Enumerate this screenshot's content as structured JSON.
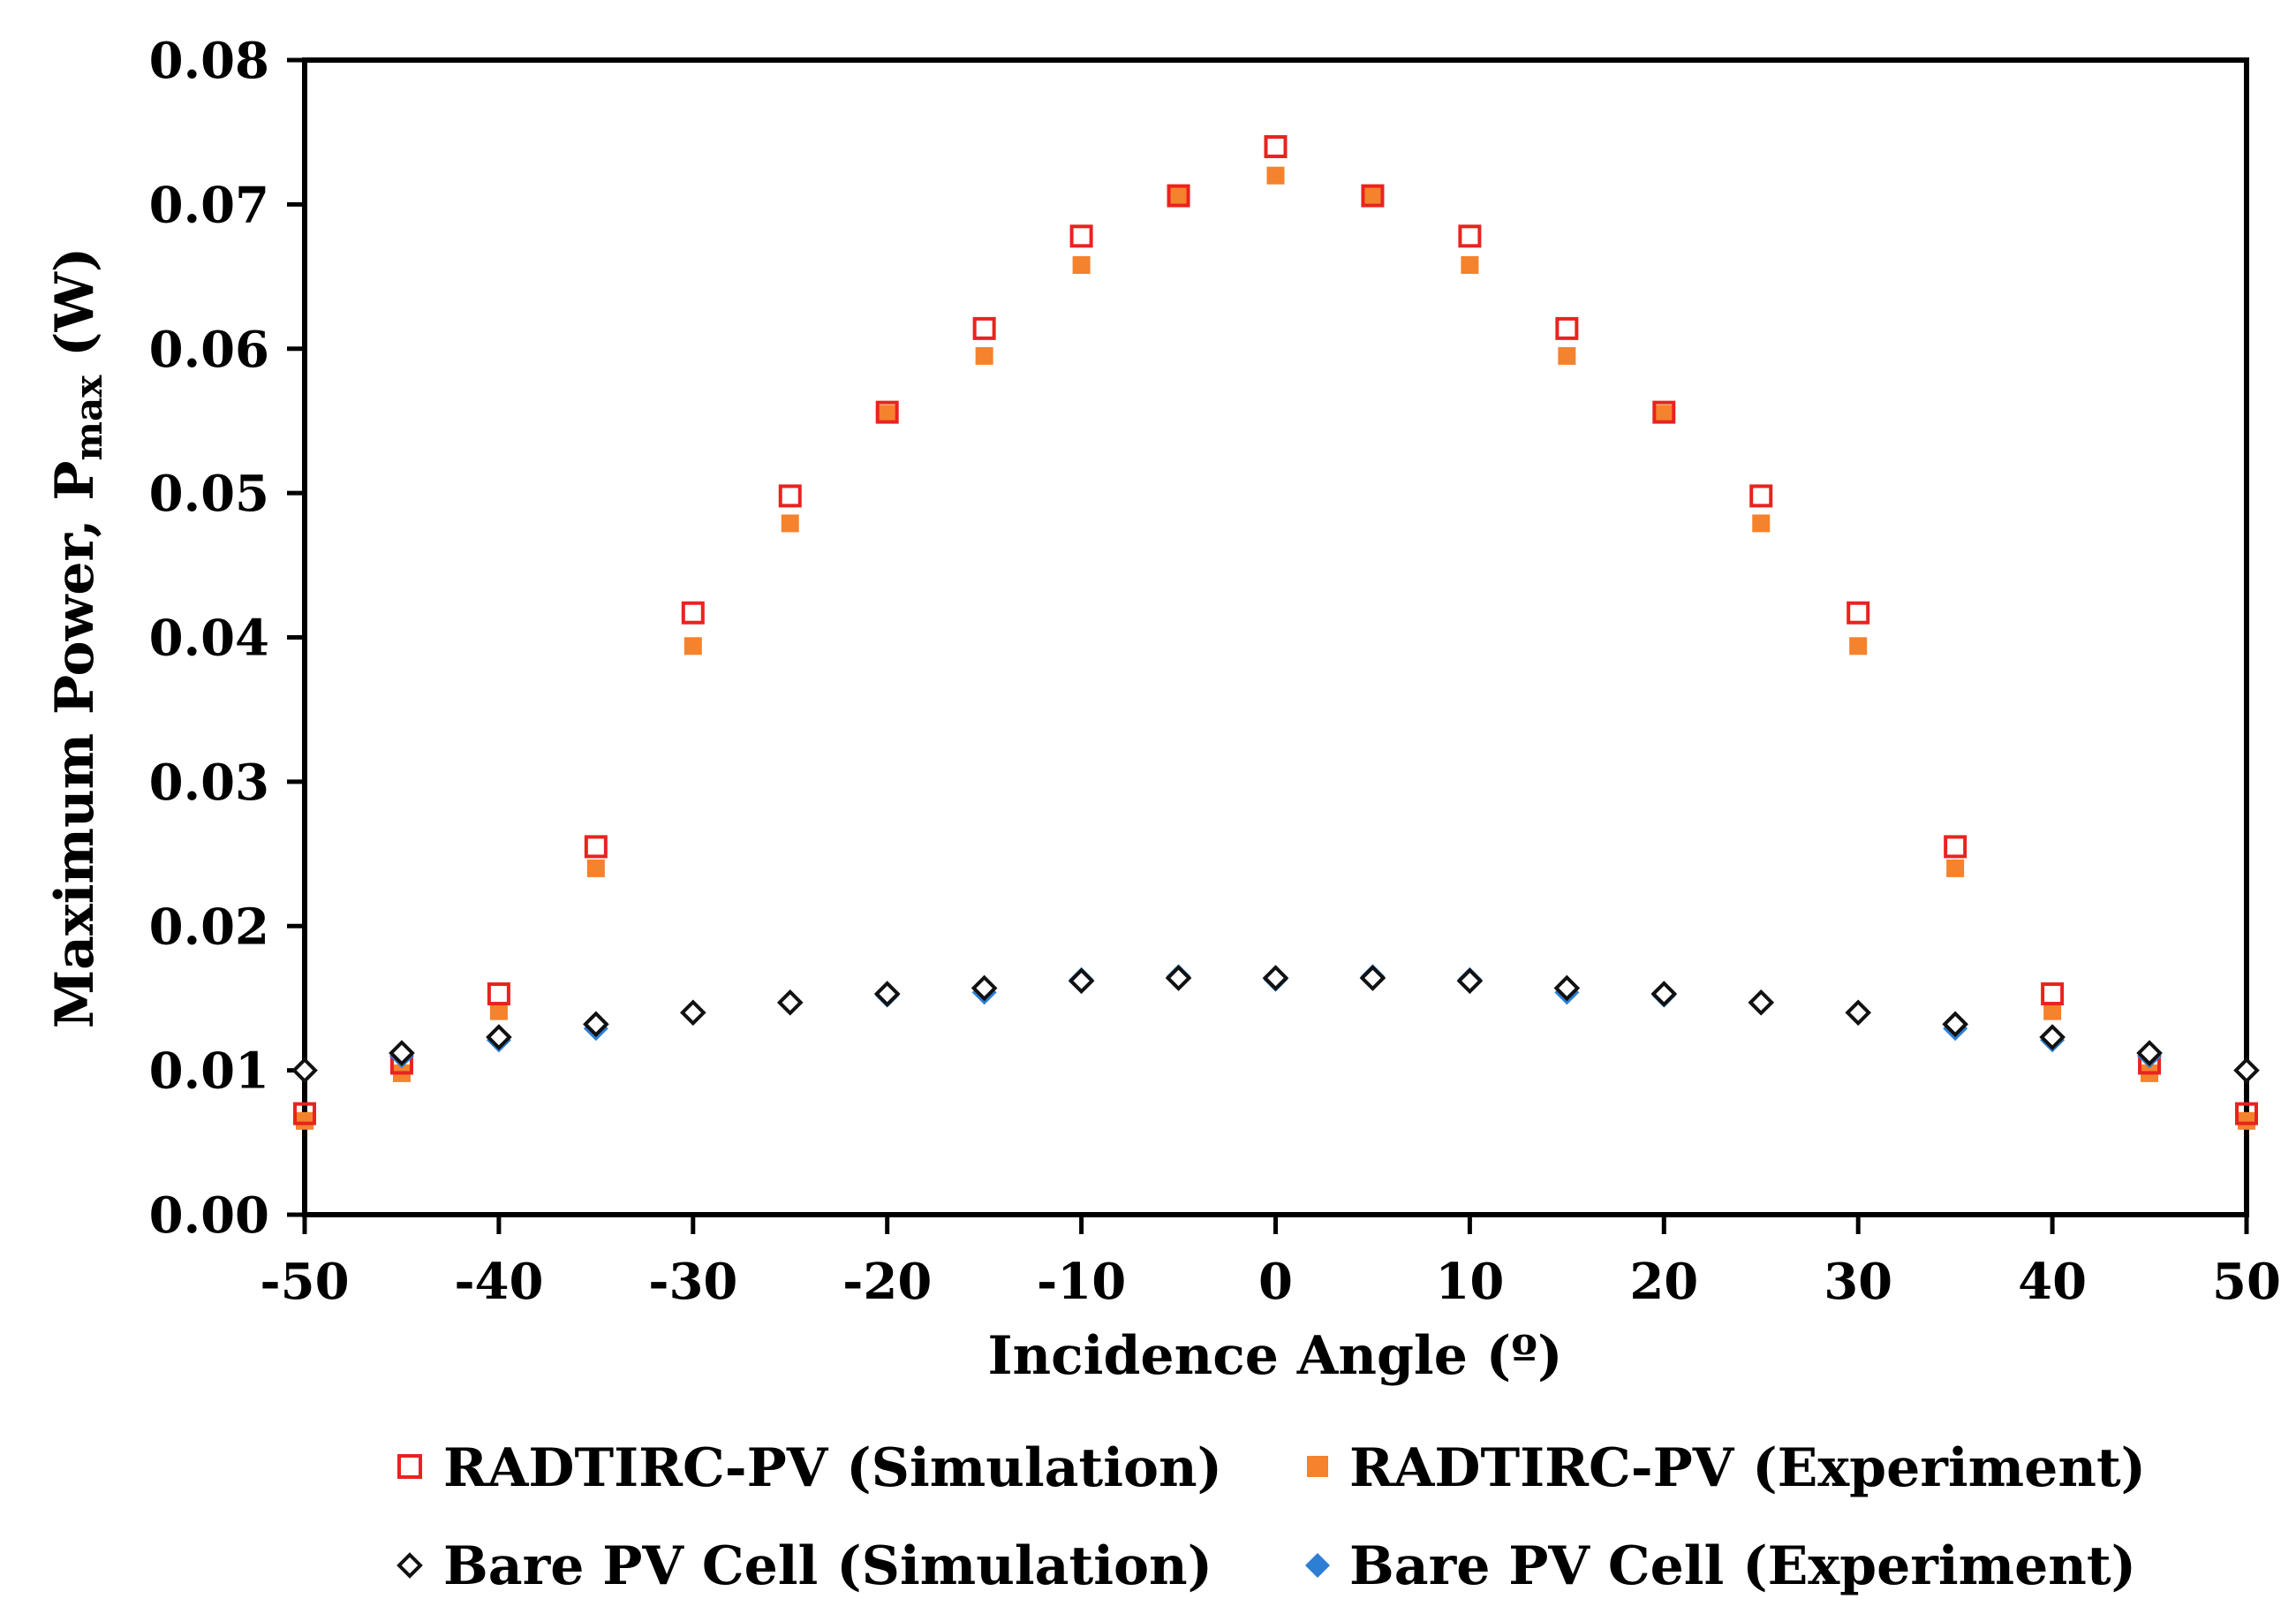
{
  "chart_data": {
    "type": "scatter",
    "title": "",
    "xlabel": "Incidence Angle (º)",
    "ylabel_main": "Maximum Power, P",
    "ylabel_sub": "max",
    "ylabel_unit": " (W)",
    "xlim": [
      -50,
      50
    ],
    "ylim": [
      0,
      0.08
    ],
    "xticks": [
      -50,
      -40,
      -30,
      -20,
      -10,
      0,
      10,
      20,
      30,
      40,
      50
    ],
    "xtick_labels": [
      "-50",
      "-40",
      "-30",
      "-20",
      "-10",
      "0",
      "10",
      "20",
      "30",
      "40",
      "50"
    ],
    "yticks": [
      0,
      0.01,
      0.02,
      0.03,
      0.04,
      0.05,
      0.06,
      0.07,
      0.08
    ],
    "ytick_labels": [
      "0.00",
      "0.01",
      "0.02",
      "0.03",
      "0.04",
      "0.05",
      "0.06",
      "0.07",
      "0.08"
    ],
    "grid": false,
    "legend_position": "bottom",
    "x": [
      -50,
      -45,
      -40,
      -35,
      -30,
      -25,
      -20,
      -15,
      -10,
      -5,
      0,
      5,
      10,
      15,
      20,
      25,
      30,
      35,
      40,
      45,
      50
    ],
    "series": [
      {
        "name": "RADTIRC-PV (Simulation)",
        "marker": "open-square",
        "color": "#e8231f",
        "values": [
          0.007,
          0.0105,
          0.0153,
          0.0255,
          0.0417,
          0.0498,
          0.0556,
          0.0614,
          0.0678,
          0.0706,
          0.074,
          0.0706,
          0.0678,
          0.0614,
          0.0556,
          0.0498,
          0.0417,
          0.0255,
          0.0153,
          0.0105,
          0.007
        ]
      },
      {
        "name": "RADTIRC-PV (Experiment)",
        "marker": "filled-square",
        "color": "#f5822c",
        "values": [
          0.0065,
          0.0098,
          0.0141,
          0.024,
          0.0394,
          0.0479,
          0.0555,
          0.0595,
          0.0658,
          0.0706,
          0.072,
          0.0706,
          0.0658,
          0.0595,
          0.0555,
          0.0479,
          0.0394,
          0.024,
          0.0141,
          0.0098,
          0.0065
        ]
      },
      {
        "name": "Bare PV Cell (Simulation)",
        "marker": "open-diamond",
        "color": "#111111",
        "values": [
          0.01,
          0.0112,
          0.0123,
          0.0132,
          0.014,
          0.0147,
          0.0153,
          0.0157,
          0.0162,
          0.0164,
          0.0164,
          0.0164,
          0.0162,
          0.0157,
          0.0153,
          0.0147,
          0.014,
          0.0132,
          0.0123,
          0.0112,
          0.01
        ]
      },
      {
        "name": "Bare PV Cell (Experiment)",
        "marker": "filled-diamond",
        "color": "#2d7fd4",
        "values": [
          0.01,
          0.011,
          0.0121,
          0.0129,
          0.014,
          0.0147,
          0.0152,
          0.0154,
          0.0163,
          0.0165,
          0.0163,
          0.0165,
          0.0163,
          0.0154,
          0.0152,
          0.0147,
          0.014,
          0.0129,
          0.0121,
          0.011,
          0.01
        ]
      }
    ]
  }
}
